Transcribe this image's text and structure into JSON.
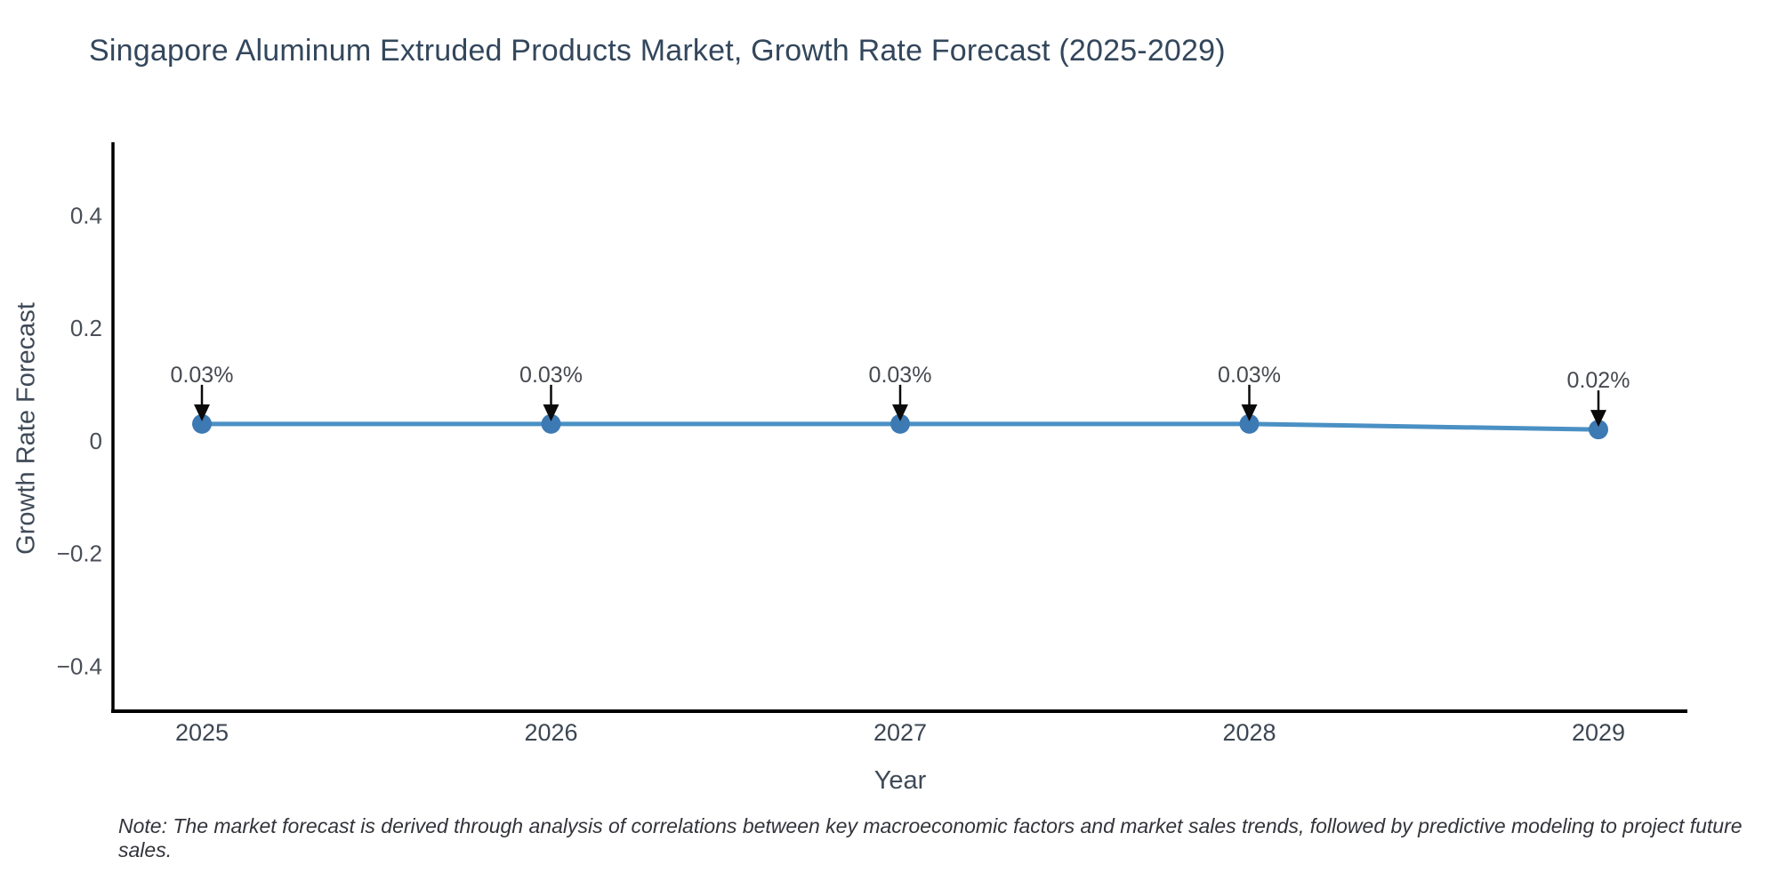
{
  "title": "Singapore Aluminum Extruded Products Market, Growth Rate Forecast (2025-2029)",
  "note": "Note: The market forecast is derived through analysis of correlations between key macroeconomic factors and market sales trends, followed by predictive modeling to project future sales.",
  "chart_data": {
    "type": "line",
    "title": "Singapore Aluminum Extruded Products Market, Growth Rate Forecast (2025-2029)",
    "xlabel": "Year",
    "ylabel": "Growth Rate Forecast",
    "categories": [
      "2025",
      "2026",
      "2027",
      "2028",
      "2029"
    ],
    "series": [
      {
        "name": "Growth Rate Forecast",
        "values": [
          0.03,
          0.03,
          0.03,
          0.03,
          0.02
        ]
      }
    ],
    "point_labels": [
      "0.03%",
      "0.03%",
      "0.03%",
      "0.03%",
      "0.02%"
    ],
    "yticks": [
      0.4,
      0.2,
      0,
      -0.2,
      -0.4
    ],
    "ytick_labels": [
      "0.4",
      "0.2",
      "0",
      "−0.2",
      "−0.4"
    ],
    "ylim": [
      -0.48,
      0.53
    ],
    "grid": false,
    "legend": "none",
    "annotation_arrows": true,
    "colors": {
      "line": "#4a90c4",
      "marker": "#3d7ab3",
      "axis": "#000000",
      "arrow": "#0a0a0a",
      "annotation_text": "#46494f",
      "ytick_text": "#4a4e57",
      "xtick_text": "#3c4653",
      "title_text": "#33475c",
      "axis_label_text": "#3f4a57",
      "note_text": "#33343a"
    }
  }
}
